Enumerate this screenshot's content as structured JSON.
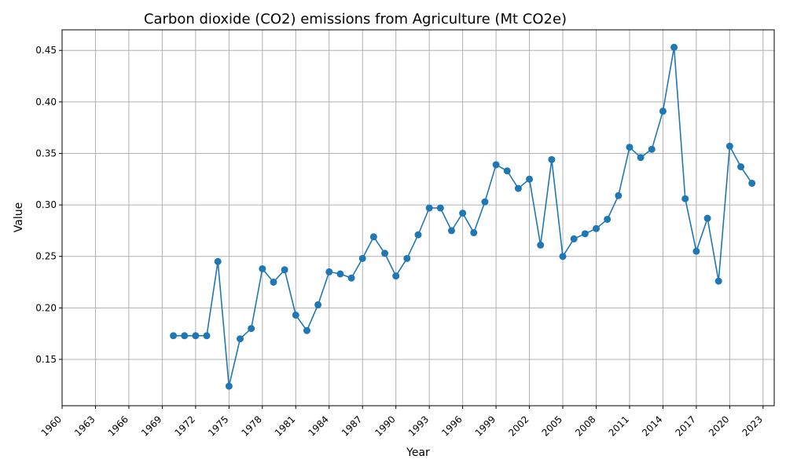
{
  "chart_data": {
    "type": "line",
    "title": "Carbon dioxide (CO2) emissions from Agriculture (Mt CO2e)",
    "xlabel": "Year",
    "ylabel": "Value",
    "xlim": [
      1960,
      2024
    ],
    "ylim": [
      0.105,
      0.47
    ],
    "x_ticks": [
      1960,
      1963,
      1966,
      1969,
      1972,
      1975,
      1978,
      1981,
      1984,
      1987,
      1990,
      1993,
      1996,
      1999,
      2002,
      2005,
      2008,
      2011,
      2014,
      2017,
      2020,
      2023
    ],
    "y_ticks": [
      "0.15",
      "0.20",
      "0.25",
      "0.30",
      "0.35",
      "0.40",
      "0.45"
    ],
    "grid": true,
    "color": "#1f77b4",
    "series": [
      {
        "x": [
          1970,
          1971,
          1972,
          1973,
          1974,
          1975,
          1976,
          1977,
          1978,
          1979,
          1980,
          1981,
          1982,
          1983,
          1984,
          1985,
          1986,
          1987,
          1988,
          1989,
          1990,
          1991,
          1992,
          1993,
          1994,
          1995,
          1996,
          1997,
          1998,
          1999,
          2000,
          2001,
          2002,
          2003,
          2004,
          2005,
          2006,
          2007,
          2008,
          2009,
          2010,
          2011,
          2012,
          2013,
          2014,
          2015,
          2016,
          2017,
          2018,
          2019,
          2020,
          2021,
          2022
        ],
        "values": [
          0.173,
          0.173,
          0.173,
          0.173,
          0.245,
          0.124,
          0.17,
          0.18,
          0.238,
          0.225,
          0.237,
          0.193,
          0.178,
          0.203,
          0.235,
          0.233,
          0.229,
          0.248,
          0.269,
          0.253,
          0.231,
          0.248,
          0.271,
          0.297,
          0.297,
          0.275,
          0.292,
          0.273,
          0.303,
          0.339,
          0.333,
          0.316,
          0.325,
          0.261,
          0.344,
          0.25,
          0.267,
          0.272,
          0.277,
          0.286,
          0.309,
          0.356,
          0.346,
          0.354,
          0.391,
          0.453,
          0.306,
          0.255,
          0.287,
          0.226,
          0.357,
          0.337,
          0.321
        ]
      }
    ]
  }
}
